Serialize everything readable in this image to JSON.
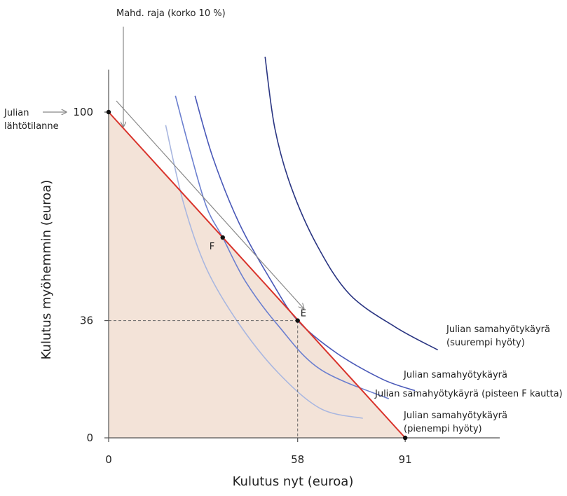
{
  "chart_data": {
    "type": "line",
    "title": "",
    "xlabel": "Kulutus nyt (euroa)",
    "ylabel": "Kulutus myöhemmin (euroa)",
    "xlim": [
      0,
      120
    ],
    "ylim": [
      0,
      115
    ],
    "x_ticks": [
      "0",
      "58",
      "91"
    ],
    "y_ticks": [
      "0",
      "36",
      "100"
    ],
    "budget_line": {
      "from": [
        0,
        100
      ],
      "to": [
        91,
        0
      ],
      "color": "#d9332b"
    },
    "feasible_region_color": "#f3e3d8",
    "points": [
      {
        "label": "F",
        "x": 35,
        "y": 61.5
      },
      {
        "label": "E",
        "x": 58,
        "y": 36
      },
      {
        "label": "",
        "x": 0,
        "y": 100
      },
      {
        "label": "",
        "x": 91,
        "y": 0
      }
    ],
    "series": [
      {
        "name": "Julian samahyötykäyrä (pienempi hyöty)",
        "color": "#a9b7e0",
        "x": [
          17.5,
          23,
          30,
          40,
          52,
          65,
          78
        ],
        "y": [
          96,
          72,
          52,
          35,
          20,
          9,
          6
        ]
      },
      {
        "name": "Julian samahyötykäyrä (pisteen F kautta)",
        "color": "#6b7fcf",
        "x": [
          20.5,
          25,
          30,
          35,
          42,
          52,
          65,
          86
        ],
        "y": [
          105,
          88,
          71,
          61.5,
          48,
          34.5,
          21,
          12
        ]
      },
      {
        "name": "Julian samahyötykäyrä",
        "color": "#4a59b8",
        "x": [
          26.5,
          32,
          40,
          50,
          58,
          70,
          84,
          94
        ],
        "y": [
          105,
          86,
          66,
          48,
          36,
          26,
          18,
          14.5
        ]
      },
      {
        "name": "Julian samahyötykäyrä (suurempi hyöty)",
        "color": "#2a3582",
        "x": [
          48,
          51,
          56,
          64,
          74,
          88,
          101
        ],
        "y": [
          117,
          95,
          77,
          59,
          44,
          34,
          27
        ]
      }
    ],
    "annotations": {
      "start_label": [
        "Julian",
        "lähtötilanne"
      ],
      "frontier_label": "Mahd. raja (korko 10 %)",
      "curve_labels": [
        [
          "Julian samahyötykäyrä",
          "(suurempi hyöty)"
        ],
        [
          "Julian samahyötykäyrä"
        ],
        [
          "Julian samahyötykäyrä (pisteen F kautta)"
        ],
        [
          "Julian samahyötykäyrä",
          "(pienempi hyöty)"
        ]
      ]
    }
  }
}
